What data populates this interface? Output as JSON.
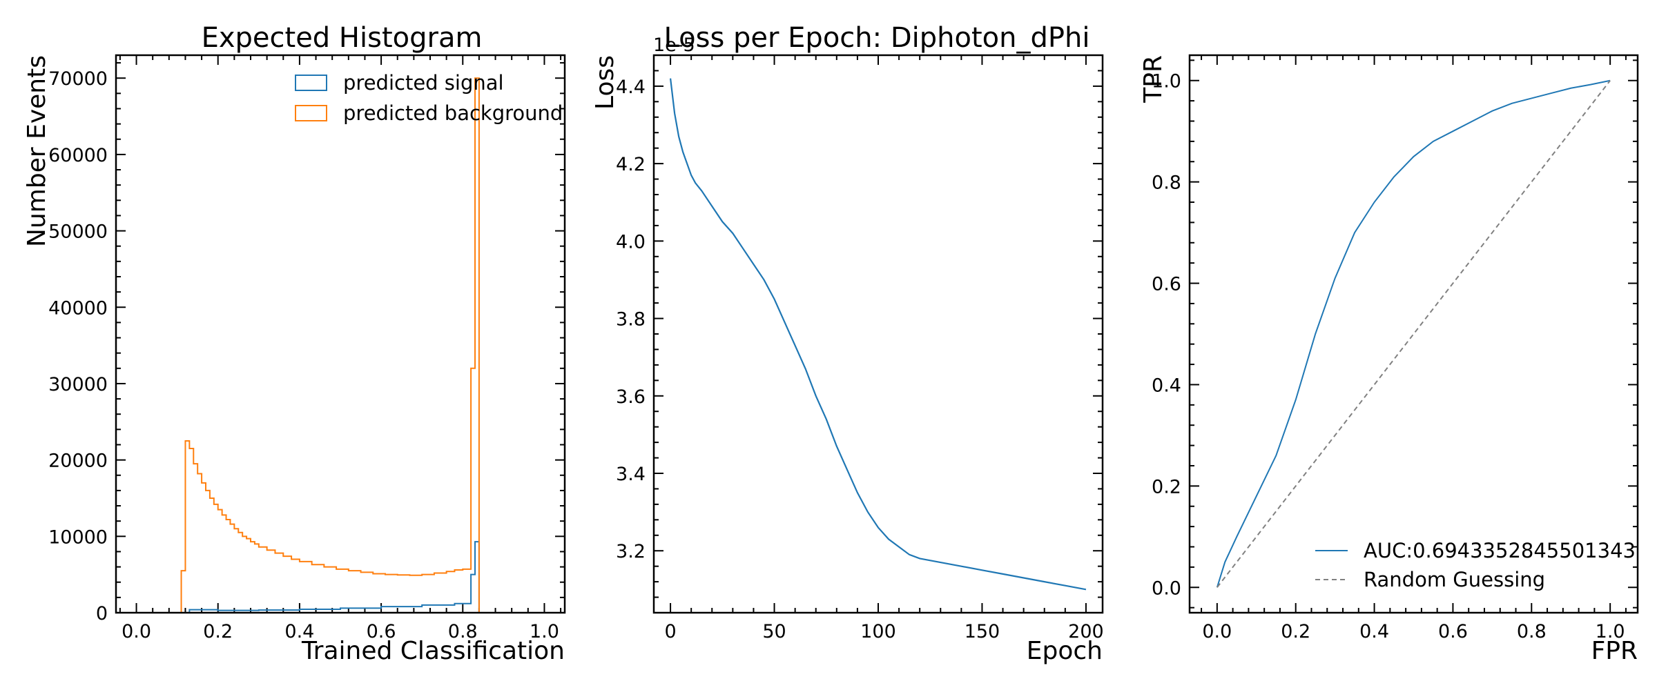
{
  "chart_data": [
    {
      "type": "histogram",
      "title": "Expected Histogram",
      "xlabel": "Trained Classification",
      "ylabel": "Number Events",
      "xlim": [
        -0.05,
        1.05
      ],
      "ylim": [
        0,
        73000
      ],
      "xticks": [
        0.0,
        0.2,
        0.4,
        0.6,
        0.8,
        1.0
      ],
      "xtick_labels": [
        "0.0",
        "0.2",
        "0.4",
        "0.6",
        "0.8",
        "1.0"
      ],
      "yticks": [
        0,
        10000,
        20000,
        30000,
        40000,
        50000,
        60000,
        70000
      ],
      "ytick_labels": [
        "0",
        "10000",
        "20000",
        "30000",
        "40000",
        "50000",
        "60000",
        "70000"
      ],
      "legend_position": "top-right",
      "colors": {
        "signal": "#1f77b4",
        "background": "#ff7f0e"
      },
      "series": [
        {
          "name": "predicted signal",
          "color": "#1f77b4",
          "bin_edges": [
            0.11,
            0.13,
            0.2,
            0.3,
            0.4,
            0.5,
            0.6,
            0.7,
            0.78,
            0.82,
            0.83,
            0.84,
            0.85
          ],
          "counts": [
            0,
            400,
            300,
            350,
            450,
            600,
            800,
            1000,
            1200,
            5000,
            9300,
            0
          ]
        },
        {
          "name": "predicted background",
          "color": "#ff7f0e",
          "bin_edges": [
            0.11,
            0.12,
            0.13,
            0.14,
            0.15,
            0.16,
            0.17,
            0.18,
            0.19,
            0.2,
            0.21,
            0.22,
            0.23,
            0.24,
            0.25,
            0.26,
            0.27,
            0.28,
            0.29,
            0.3,
            0.32,
            0.34,
            0.36,
            0.38,
            0.4,
            0.43,
            0.46,
            0.49,
            0.52,
            0.55,
            0.58,
            0.61,
            0.64,
            0.67,
            0.7,
            0.73,
            0.76,
            0.78,
            0.8,
            0.82,
            0.83,
            0.84,
            0.85
          ],
          "counts": [
            5500,
            22500,
            21500,
            19500,
            18200,
            17000,
            16000,
            15000,
            14200,
            13500,
            12800,
            12200,
            11600,
            11000,
            10500,
            10000,
            9700,
            9300,
            9000,
            8600,
            8200,
            7800,
            7400,
            7000,
            6700,
            6300,
            6000,
            5700,
            5500,
            5300,
            5100,
            5000,
            4950,
            4900,
            5000,
            5200,
            5400,
            5600,
            5700,
            32000,
            70000,
            0
          ]
        }
      ]
    },
    {
      "type": "line",
      "title": "Loss per Epoch: Diphoton_dPhi",
      "xlabel": "Epoch",
      "ylabel": "Loss",
      "offset_text": "1e-5",
      "xlim": [
        -8,
        208
      ],
      "ylim": [
        3.04,
        4.48
      ],
      "xticks": [
        0,
        50,
        100,
        150,
        200
      ],
      "xtick_labels": [
        "0",
        "50",
        "100",
        "150",
        "200"
      ],
      "yticks": [
        3.2,
        3.4,
        3.6,
        3.8,
        4.0,
        4.2,
        4.4
      ],
      "ytick_labels": [
        "3.2",
        "3.4",
        "3.6",
        "3.8",
        "4.0",
        "4.2",
        "4.4"
      ],
      "series": [
        {
          "name": "Loss",
          "color": "#1f77b4",
          "x": [
            0,
            2,
            4,
            6,
            8,
            10,
            12,
            15,
            20,
            25,
            30,
            35,
            40,
            45,
            50,
            55,
            60,
            65,
            70,
            75,
            80,
            85,
            90,
            95,
            100,
            105,
            110,
            115,
            120,
            130,
            140,
            150,
            160,
            170,
            180,
            190,
            200
          ],
          "y": [
            4.42,
            4.33,
            4.27,
            4.23,
            4.2,
            4.17,
            4.15,
            4.13,
            4.09,
            4.05,
            4.02,
            3.98,
            3.94,
            3.9,
            3.85,
            3.79,
            3.73,
            3.67,
            3.6,
            3.54,
            3.47,
            3.41,
            3.35,
            3.3,
            3.26,
            3.23,
            3.21,
            3.19,
            3.18,
            3.17,
            3.16,
            3.15,
            3.14,
            3.13,
            3.12,
            3.11,
            3.1
          ]
        }
      ]
    },
    {
      "type": "line",
      "title": "",
      "xlabel": "FPR",
      "ylabel": "TPR",
      "xlim": [
        -0.07,
        1.07
      ],
      "ylim": [
        -0.05,
        1.05
      ],
      "xticks": [
        0.0,
        0.2,
        0.4,
        0.6,
        0.8,
        1.0
      ],
      "xtick_labels": [
        "0.0",
        "0.2",
        "0.4",
        "0.6",
        "0.8",
        "1.0"
      ],
      "yticks": [
        0.0,
        0.2,
        0.4,
        0.6,
        0.8,
        1.0
      ],
      "ytick_labels": [
        "0.0",
        "0.2",
        "0.4",
        "0.6",
        "0.8",
        "1.0"
      ],
      "legend_position": "bottom-right",
      "series": [
        {
          "name": "AUC:0.6943352845501343",
          "color": "#1f77b4",
          "style": "solid",
          "x": [
            0.0,
            0.02,
            0.05,
            0.1,
            0.15,
            0.2,
            0.25,
            0.3,
            0.35,
            0.4,
            0.45,
            0.5,
            0.55,
            0.6,
            0.65,
            0.7,
            0.75,
            0.8,
            0.85,
            0.9,
            0.95,
            1.0
          ],
          "y": [
            0.0,
            0.05,
            0.1,
            0.18,
            0.26,
            0.37,
            0.5,
            0.61,
            0.7,
            0.76,
            0.81,
            0.85,
            0.88,
            0.9,
            0.92,
            0.94,
            0.955,
            0.965,
            0.975,
            0.985,
            0.992,
            1.0
          ]
        },
        {
          "name": "Random Guessing",
          "color": "#808080",
          "style": "dashed",
          "x": [
            0.0,
            1.0
          ],
          "y": [
            0.0,
            1.0
          ]
        }
      ]
    }
  ]
}
